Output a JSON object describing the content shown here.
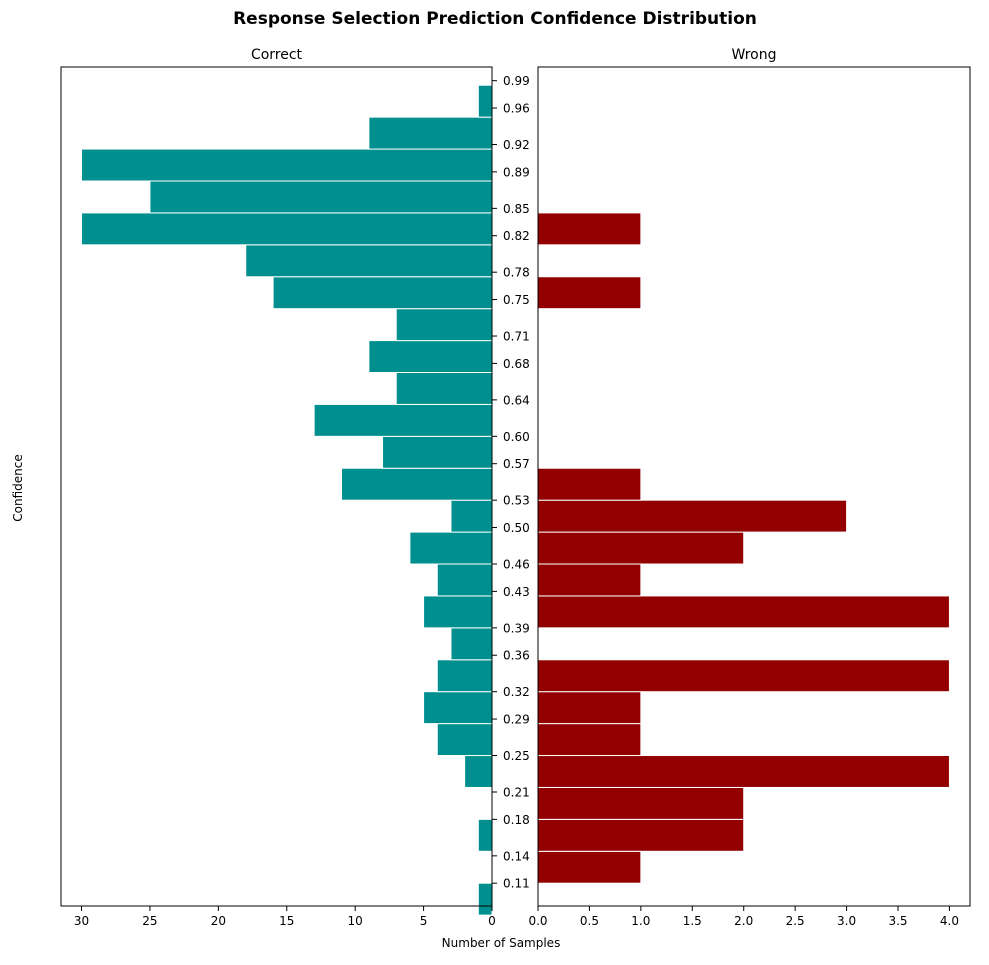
{
  "chart_data": {
    "type": "bar",
    "orientation": "horizontal",
    "title": "Response Selection Prediction Confidence Distribution",
    "xlabel": "Number of Samples",
    "ylabel": "Confidence",
    "ylim": [
      0.085,
      1.005
    ],
    "bin_edges_note": "",
    "bins": [
      0.0925,
      0.1275,
      0.1625,
      0.1975,
      0.2325,
      0.2675,
      0.3025,
      0.3375,
      0.3725,
      0.4075,
      0.4425,
      0.4775,
      0.5125,
      0.5475,
      0.5825,
      0.6175,
      0.6525,
      0.6875,
      0.7225,
      0.7575,
      0.7925,
      0.8275,
      0.8625,
      0.8975,
      0.9325,
      0.9675
    ],
    "bin_width": 0.035,
    "yticks": [
      0.11,
      0.14,
      0.18,
      0.21,
      0.25,
      0.29,
      0.32,
      0.36,
      0.39,
      0.43,
      0.46,
      0.5,
      0.53,
      0.57,
      0.6,
      0.64,
      0.68,
      0.71,
      0.75,
      0.78,
      0.82,
      0.85,
      0.89,
      0.92,
      0.96,
      0.99
    ],
    "ytick_labels": [
      "0.11",
      "0.14",
      "0.18",
      "0.21",
      "0.25",
      "0.29",
      "0.32",
      "0.36",
      "0.39",
      "0.43",
      "0.46",
      "0.50",
      "0.53",
      "0.57",
      "0.60",
      "0.64",
      "0.68",
      "0.71",
      "0.75",
      "0.78",
      "0.82",
      "0.85",
      "0.89",
      "0.92",
      "0.96",
      "0.99"
    ],
    "panels": [
      {
        "name": "Correct",
        "color": "#008f8f",
        "edge_color": "#ffffff",
        "x_inverted": true,
        "xlim": [
          0,
          31.5
        ],
        "xticks": [
          0,
          5,
          10,
          15,
          20,
          25,
          30
        ],
        "xtick_labels": [
          "0",
          "5",
          "10",
          "15",
          "20",
          "25",
          "30"
        ],
        "values": [
          1,
          0,
          1,
          0,
          2,
          4,
          5,
          4,
          3,
          5,
          4,
          6,
          3,
          11,
          8,
          13,
          7,
          9,
          7,
          16,
          18,
          30,
          25,
          30,
          9,
          1
        ]
      },
      {
        "name": "Wrong",
        "color": "#930000",
        "edge_color": "#ffffff",
        "x_inverted": false,
        "xlim": [
          0,
          4.2
        ],
        "xticks": [
          0.0,
          0.5,
          1.0,
          1.5,
          2.0,
          2.5,
          3.0,
          3.5,
          4.0
        ],
        "xtick_labels": [
          "0.0",
          "0.5",
          "1.0",
          "1.5",
          "2.0",
          "2.5",
          "3.0",
          "3.5",
          "4.0"
        ],
        "values": [
          0,
          1,
          2,
          2,
          4,
          1,
          1,
          4,
          0,
          4,
          1,
          2,
          3,
          1,
          0,
          0,
          0,
          0,
          0,
          1,
          0,
          1,
          0,
          0,
          0,
          0
        ]
      }
    ],
    "grid": false,
    "legend": "none"
  }
}
